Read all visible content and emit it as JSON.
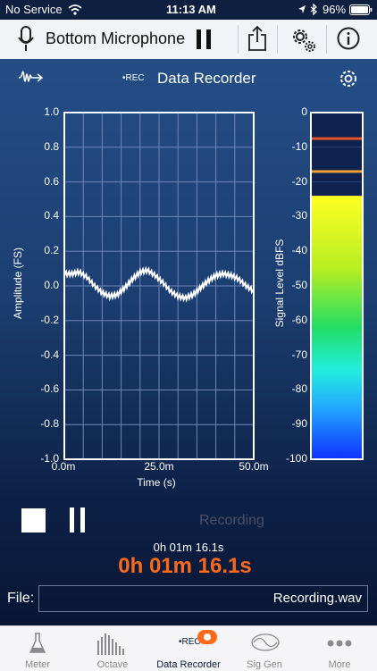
{
  "status_bar": {
    "carrier": "No Service",
    "time": "11:13 AM",
    "battery": "96%"
  },
  "top_bar": {
    "mic_title": "Bottom Microphone"
  },
  "nav": {
    "rec_badge": "•REC",
    "title": "Data Recorder"
  },
  "amplitude_chart": {
    "ylabel": "Amplitude (FS)",
    "xlabel": "Time (s)",
    "y_ticks": [
      "1.0",
      "0.8",
      "0.6",
      "0.4",
      "0.2",
      "0.0",
      "-0.2",
      "-0.4",
      "-0.6",
      "-0.8",
      "-1.0"
    ],
    "x_ticks": [
      "0.0m",
      "25.0m",
      "50.0m"
    ]
  },
  "level_chart": {
    "ylabel": "Signal Level dBFS",
    "ticks": [
      "0",
      "-10",
      "-20",
      "-30",
      "-40",
      "-50",
      "-60",
      "-70",
      "-80",
      "-90",
      "-100"
    ]
  },
  "chart_data": [
    {
      "type": "line",
      "ylabel": "Amplitude (FS)",
      "xlabel": "Time (s)",
      "xlim": [
        0,
        50
      ],
      "ylim": [
        -1.0,
        1.0
      ],
      "grid": true,
      "x": [
        0,
        2,
        4,
        6,
        8,
        10,
        12,
        14,
        16,
        18,
        20,
        22,
        24,
        26,
        28,
        30,
        32,
        34,
        36,
        38,
        40,
        42,
        44,
        46,
        48,
        50
      ],
      "y": [
        0.07,
        0.07,
        0.08,
        0.05,
        0.0,
        -0.04,
        -0.06,
        -0.05,
        -0.01,
        0.04,
        0.08,
        0.09,
        0.06,
        0.02,
        -0.03,
        -0.06,
        -0.07,
        -0.05,
        -0.01,
        0.03,
        0.06,
        0.07,
        0.06,
        0.04,
        0.0,
        -0.03
      ]
    },
    {
      "type": "bar",
      "ylabel": "Signal Level dBFS",
      "ylim": [
        -100,
        0
      ],
      "categories": [
        "level"
      ],
      "values": [
        -24
      ],
      "peak_markers": [
        -7.5,
        -17
      ]
    }
  ],
  "controls": {
    "recording_label": "Recording",
    "elapsed_small": "0h 01m 16.1s",
    "elapsed_big": "0h 01m 16.1s"
  },
  "file": {
    "label": "File:",
    "value": "Recording.wav"
  },
  "tabs": [
    {
      "label": "Meter"
    },
    {
      "label": "Octave"
    },
    {
      "label": "Data Recorder"
    },
    {
      "label": "Sig Gen"
    },
    {
      "label": "More"
    }
  ],
  "colors": {
    "accent_orange": "#ff6a1a",
    "tab_active": "#0a1a3a",
    "level_peak_red": "#e8552a",
    "level_peak_orange": "#f0a030"
  }
}
